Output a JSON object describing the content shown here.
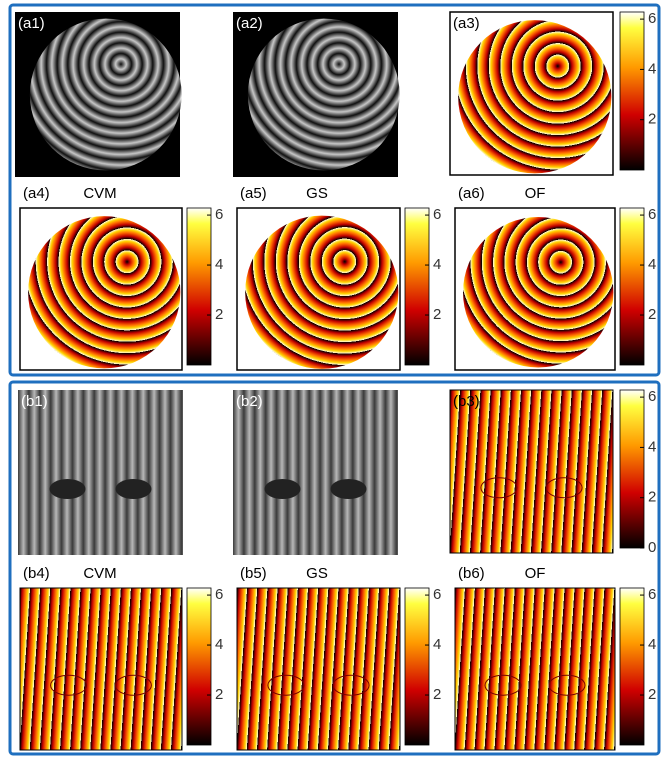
{
  "panels": [
    {
      "label": "(a1)"
    },
    {
      "label": "(a2)"
    },
    {
      "label": "(a3)",
      "colorbar": {
        "clim": [
          0,
          6.283
        ],
        "ticks": [
          2,
          4,
          6
        ]
      }
    },
    {
      "label": "(a4)",
      "title": "CVM",
      "colorbar": {
        "clim": [
          0,
          6.283
        ],
        "ticks": [
          2,
          4,
          6
        ]
      }
    },
    {
      "label": "(a5)",
      "title": "GS",
      "colorbar": {
        "clim": [
          0,
          6.283
        ],
        "ticks": [
          2,
          4,
          6
        ]
      }
    },
    {
      "label": "(a6)",
      "title": "OF",
      "colorbar": {
        "clim": [
          0,
          6.283
        ],
        "ticks": [
          2,
          4,
          6
        ]
      }
    },
    {
      "label": "(b1)"
    },
    {
      "label": "(b2)"
    },
    {
      "label": "(b3)",
      "colorbar": {
        "clim": [
          0,
          6.283
        ],
        "ticks": [
          0,
          2,
          4,
          6
        ]
      }
    },
    {
      "label": "(b4)",
      "title": "CVM",
      "colorbar": {
        "clim": [
          0,
          6.283
        ],
        "ticks": [
          2,
          4,
          6
        ]
      }
    },
    {
      "label": "(b5)",
      "title": "GS",
      "colorbar": {
        "clim": [
          0,
          6.283
        ],
        "ticks": [
          2,
          4,
          6
        ]
      }
    },
    {
      "label": "(b6)",
      "title": "OF",
      "colorbar": {
        "clim": [
          0,
          6.283
        ],
        "ticks": [
          2,
          4,
          6
        ]
      }
    }
  ]
}
